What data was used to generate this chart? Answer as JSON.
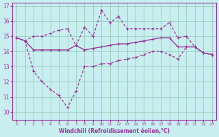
{
  "xlabel": "Windchill (Refroidissement éolien,°C)",
  "bg_color": "#c8eef0",
  "grid_color": "#99ccbb",
  "line_color": "#993399",
  "xlim": [
    -0.5,
    23.5
  ],
  "ylim": [
    9.5,
    17.2
  ],
  "xticks": [
    0,
    1,
    2,
    3,
    4,
    5,
    6,
    7,
    8,
    9,
    10,
    11,
    12,
    13,
    14,
    15,
    16,
    17,
    18,
    19,
    20,
    21,
    22,
    23
  ],
  "yticks": [
    10,
    11,
    12,
    13,
    14,
    15,
    16,
    17
  ],
  "line1_x": [
    0,
    1,
    2,
    3,
    4,
    5,
    6,
    7,
    8,
    9,
    10,
    11,
    12,
    13,
    14,
    15,
    16,
    17,
    18,
    19,
    20,
    21,
    22,
    23
  ],
  "line1_y": [
    14.9,
    14.7,
    14.1,
    14.1,
    14.1,
    14.1,
    14.1,
    14.4,
    14.1,
    14.2,
    14.3,
    14.4,
    14.5,
    14.5,
    14.6,
    14.7,
    14.8,
    14.9,
    14.9,
    14.3,
    14.3,
    14.3,
    13.9,
    13.8
  ],
  "line2_x": [
    0,
    1,
    2,
    3,
    4,
    5,
    6,
    7,
    8,
    9,
    10,
    11,
    12,
    13,
    14,
    15,
    16,
    17,
    18,
    19,
    20,
    21,
    22,
    23
  ],
  "line2_y": [
    14.9,
    14.7,
    15.0,
    15.0,
    15.2,
    15.4,
    15.5,
    14.4,
    15.6,
    15.0,
    16.7,
    15.9,
    16.3,
    15.5,
    15.5,
    15.5,
    15.5,
    15.5,
    15.9,
    14.9,
    15.0,
    14.3,
    13.9,
    13.8
  ],
  "line3_x": [
    0,
    1,
    2,
    3,
    4,
    5,
    6,
    7,
    8,
    9,
    10,
    11,
    12,
    13,
    14,
    15,
    16,
    17,
    18,
    19,
    20,
    21,
    22,
    23
  ],
  "line3_y": [
    14.9,
    14.7,
    12.7,
    12.0,
    11.5,
    11.1,
    10.3,
    11.4,
    13.0,
    13.0,
    13.2,
    13.2,
    13.4,
    13.5,
    13.6,
    13.8,
    14.0,
    14.0,
    13.8,
    13.5,
    14.3,
    14.3,
    13.9,
    13.8
  ]
}
